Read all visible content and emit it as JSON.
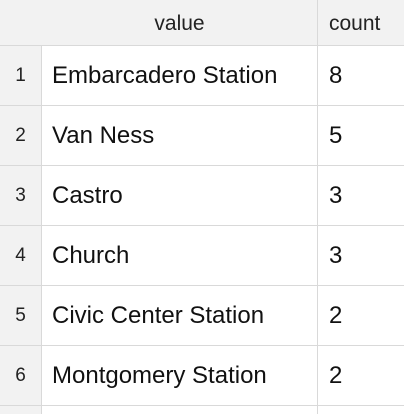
{
  "table": {
    "columns": {
      "value": "value",
      "count": "count"
    },
    "rows": [
      {
        "index": "1",
        "value": "Embarcadero Station",
        "count": "8"
      },
      {
        "index": "2",
        "value": "Van Ness",
        "count": "5"
      },
      {
        "index": "3",
        "value": "Castro",
        "count": "3"
      },
      {
        "index": "4",
        "value": "Church",
        "count": "3"
      },
      {
        "index": "5",
        "value": "Civic Center Station",
        "count": "2"
      },
      {
        "index": "6",
        "value": "Montgomery Station",
        "count": "2"
      }
    ]
  }
}
